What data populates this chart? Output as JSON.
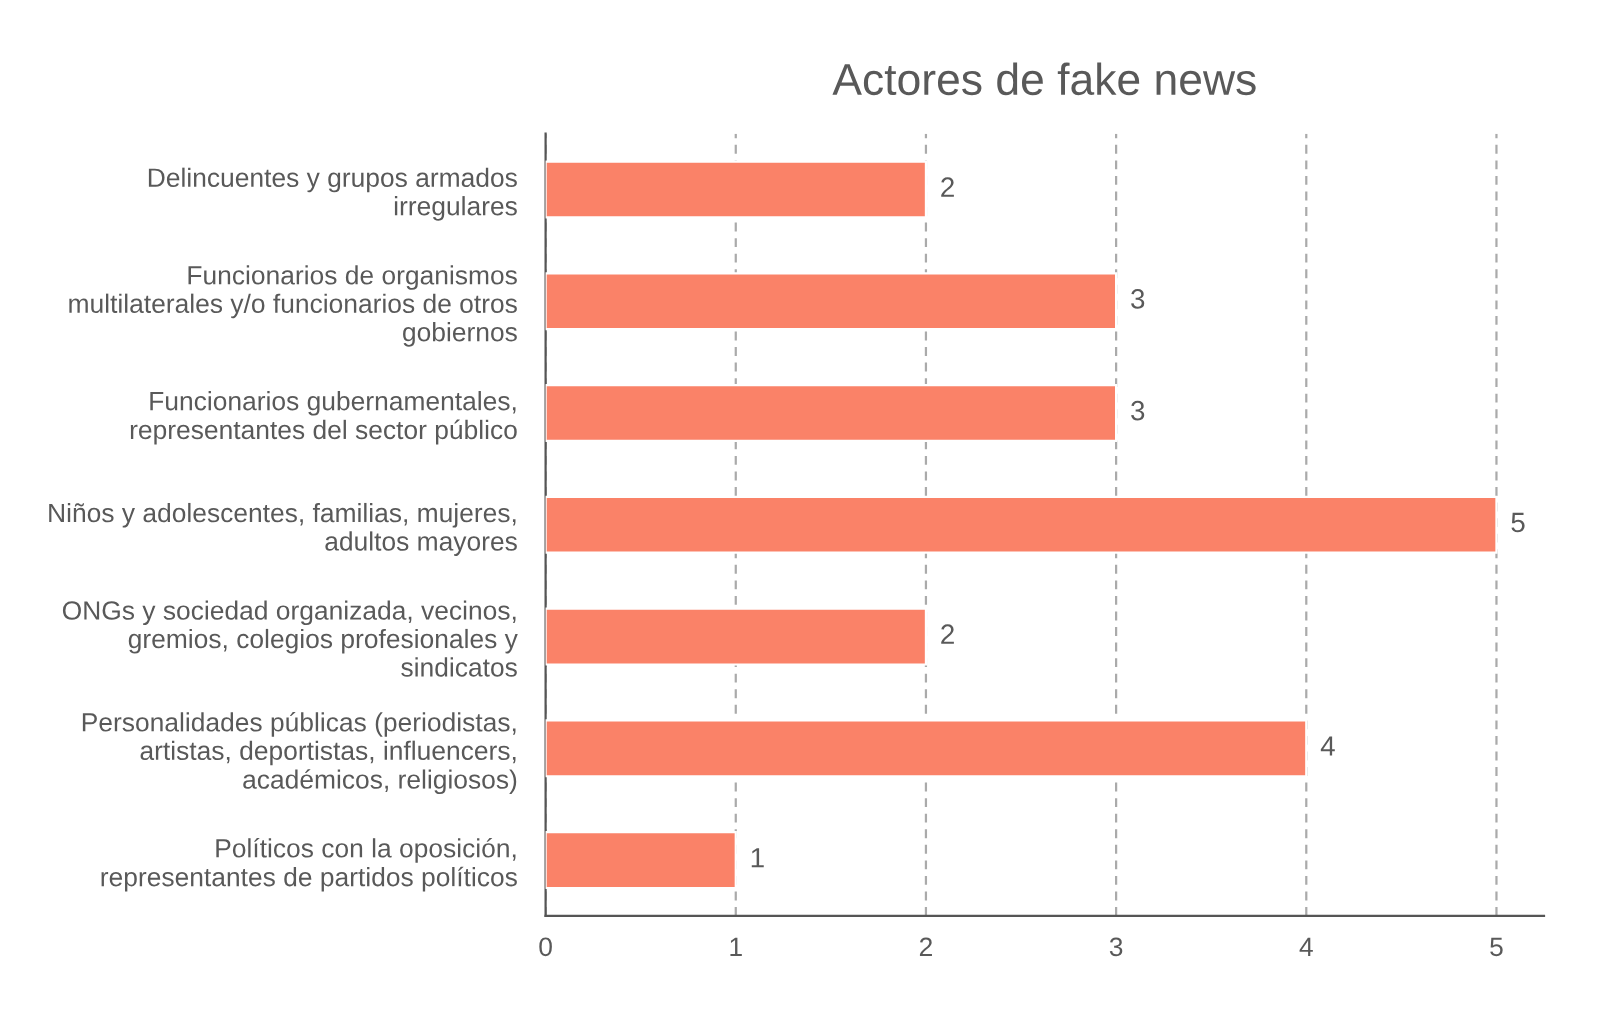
{
  "chart_data": {
    "type": "bar",
    "orientation": "horizontal",
    "title": "Actores de fake news",
    "categories": [
      "Delincuentes y grupos armados\nirregulares",
      "Funcionarios de organismos\nmultilaterales y/o funcionarios de otros\ngobiernos",
      "Funcionarios gubernamentales,\nrepresentantes del sector público",
      "Niños y adolescentes, familias, mujeres,\nadultos mayores",
      "ONGs y sociedad organizada, vecinos,\ngremios, colegios profesionales y\nsindicatos",
      "Personalidades públicas (periodistas,\nartistas, deportistas, influencers,\nacadémicos, religiosos)",
      "Políticos con la oposición,\nrepresentantes de partidos políticos"
    ],
    "values": [
      2,
      3,
      3,
      5,
      2,
      4,
      1
    ],
    "color": "#fa8268",
    "xlim": [
      0,
      5.25
    ],
    "xticks": [
      0,
      1,
      2,
      3,
      4,
      5
    ],
    "grid": "x",
    "data_labels": true
  }
}
